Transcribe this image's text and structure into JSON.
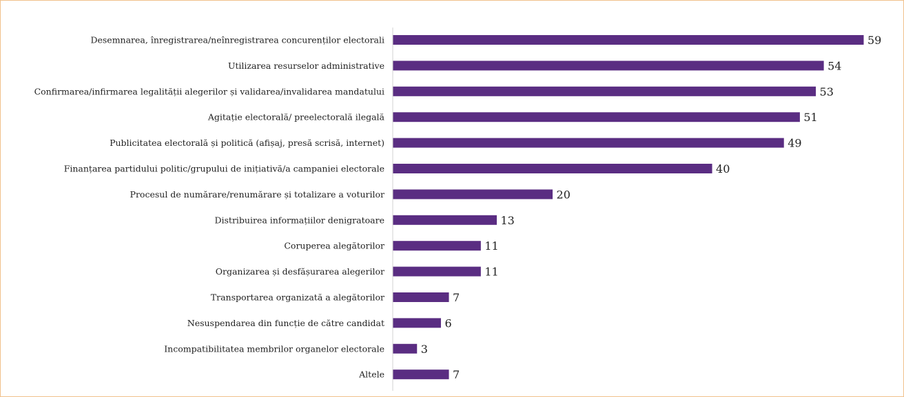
{
  "chart_data": {
    "type": "bar",
    "orientation": "horizontal",
    "categories": [
      "Desemnarea, înregistrarea/neînregistrarea  concurenților electorali",
      "Utilizarea resurselor administrative",
      "Confirmarea/infirmarea legalității alegerilor și validarea/invalidarea mandatului",
      "Agitație electorală/ preelectorală ilegală",
      "Publicitatea electorală și politică (afișaj, presă scrisă, internet)",
      "Finanțarea partidului politic/grupului de inițiativă/a campaniei electorale",
      "Procesul de numărare/renumărare  și totalizare a voturilor",
      "Distribuirea informațiilor denigratoare",
      "Coruperea alegătorilor",
      "Organizarea și desfășurarea alegerilor",
      "Transportarea organizată a alegătorilor",
      "Nesuspendarea din funcție de către candidat",
      "Incompatibilitatea membrilor organelor electorale",
      "Altele"
    ],
    "values": [
      59,
      54,
      53,
      51,
      49,
      40,
      20,
      13,
      11,
      11,
      7,
      6,
      3,
      7
    ],
    "xlim": [
      0,
      60
    ],
    "bar_color": "#5a2d82",
    "axis_color": "#d0d0d0",
    "grid": false,
    "legend": false,
    "data_labels": true
  }
}
